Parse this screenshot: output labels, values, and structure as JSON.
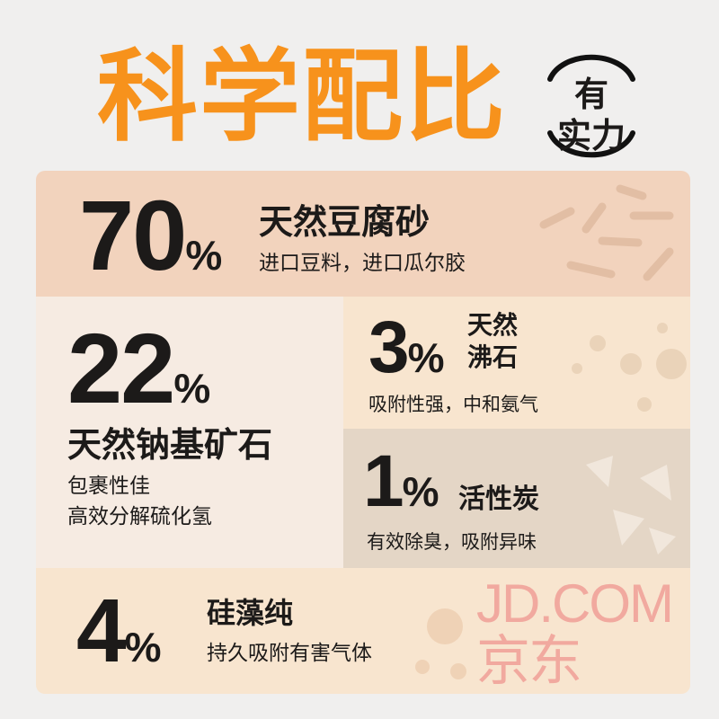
{
  "title": "科学配比",
  "badge": {
    "line1": "有",
    "line2": "实力"
  },
  "colors": {
    "accent": "#f7921c",
    "row1": "#f2d3bd",
    "row2_left": "#f6ebe2",
    "row2_right_top": "#f8e5cf",
    "row2_right_bottom": "#e4d6c6",
    "row3": "#f8e5cf"
  },
  "items": [
    {
      "percent": "70",
      "symbol": "%",
      "name": "天然豆腐砂",
      "desc": "进口豆料，进口瓜尔胶"
    },
    {
      "percent": "22",
      "symbol": "%",
      "name": "天然钠基矿石",
      "desc": "包裹性佳",
      "desc2": "高效分解硫化氢"
    },
    {
      "percent": "3",
      "symbol": "%",
      "name": "天然",
      "name2": "沸石",
      "desc": "吸附性强，中和氨气"
    },
    {
      "percent": "1",
      "symbol": "%",
      "name": "活性炭",
      "desc": "有效除臭，吸附异味"
    },
    {
      "percent": "4",
      "symbol": "%",
      "name": "硅藻纯",
      "desc": "持久吸附有害气体"
    }
  ],
  "watermark": "JD.COM 京东"
}
